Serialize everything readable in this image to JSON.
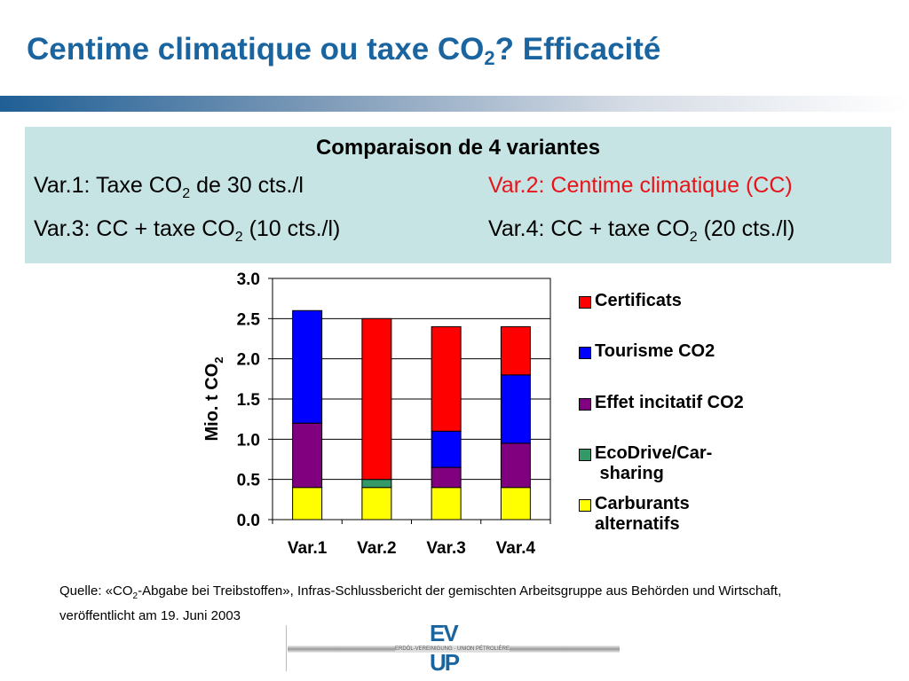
{
  "title": {
    "main": "Centime climatique ou taxe CO",
    "sub": "2",
    "rest": "? Efficacité"
  },
  "box": {
    "heading": "Comparaison de 4 variantes",
    "var1": {
      "a": "Var.1: Taxe CO",
      "sub": "2",
      "b": " de 30 cts./l"
    },
    "var2": "Var.2: Centime climatique (CC)",
    "var3": {
      "a": "Var.3: CC + taxe CO",
      "sub": "2",
      "b": " (10 cts./l)"
    },
    "var4": {
      "a": "Var.4: CC + taxe CO",
      "sub": "2",
      "b": " (20 cts./l)"
    },
    "var2_color": "#e8141a"
  },
  "chart_data": {
    "type": "bar",
    "stacked": true,
    "categories": [
      "Var.1",
      "Var.2",
      "Var.3",
      "Var.4"
    ],
    "ylabel": "Mio. t CO",
    "ylabel_sub": "2",
    "ylim": [
      0,
      3
    ],
    "yticks": [
      "0.0",
      "0.5",
      "1.0",
      "1.5",
      "2.0",
      "2.5",
      "3.0"
    ],
    "grid": true,
    "legend_position": "right",
    "series": [
      {
        "name": "Carburants alternatifs",
        "color": "#ffff00",
        "values": [
          0.4,
          0.4,
          0.4,
          0.4
        ]
      },
      {
        "name": "EcoDrive/Car-sharing",
        "color": "#339966",
        "values": [
          0,
          0.1,
          0,
          0
        ]
      },
      {
        "name": "Effet incitatif CO2",
        "color": "#800080",
        "values": [
          0.8,
          0,
          0.25,
          0.55
        ]
      },
      {
        "name": "Tourisme CO2",
        "color": "#0000ff",
        "values": [
          1.4,
          0,
          0.45,
          0.85
        ]
      },
      {
        "name": "Certificats",
        "color": "#ff0000",
        "values": [
          0,
          2.0,
          1.3,
          0.6
        ]
      }
    ],
    "legend_order": [
      "Certificats",
      "Tourisme CO2",
      "Effet incitatif CO2",
      "EcoDrive/Car-sharing",
      "Carburants alternatifs"
    ]
  },
  "source": {
    "a": "Quelle: «CO",
    "sub": "2",
    "b": "-Abgabe bei Treibstoffen», Infras-Schlussbericht der gemischten Arbeitsgruppe aus Behörden und Wirtschaft, veröffentlicht am 19. Juni 2003"
  },
  "logo": {
    "top": "EV",
    "bottom": "UP",
    "band": "ERDÖL-VEREINIGUNG · UNION PÉTROLIÈRE"
  }
}
